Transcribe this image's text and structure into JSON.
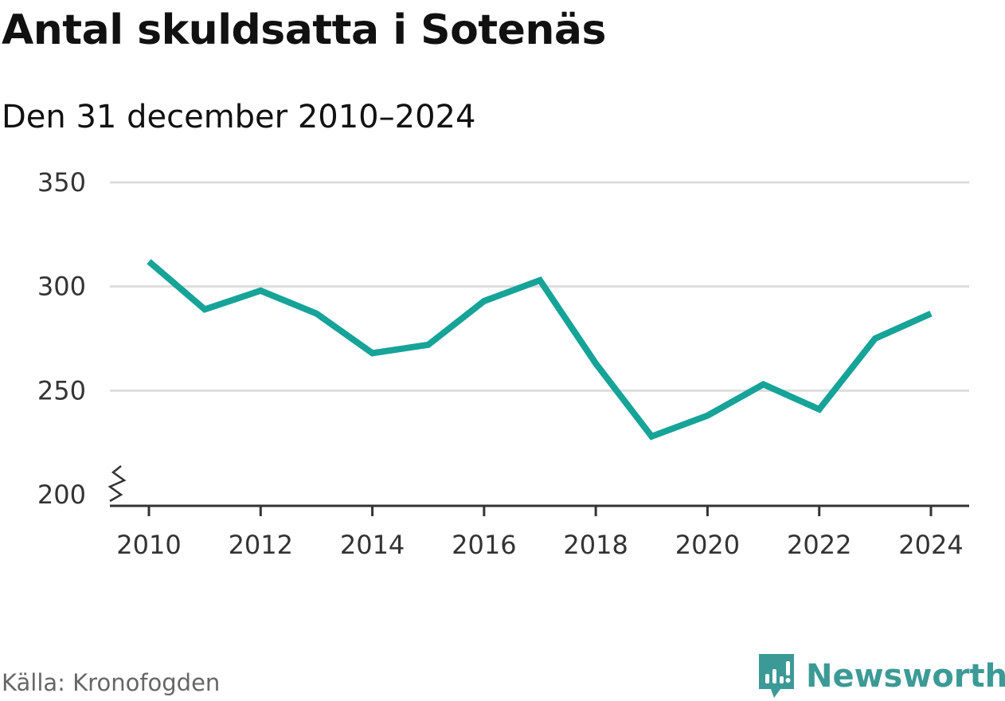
{
  "header": {
    "title": "Antal skuldsatta i Sotenäs",
    "subtitle": "Den 31 december 2010–2024"
  },
  "footer": {
    "source": "Källa: Kronofogden",
    "brand": "Newsworthy"
  },
  "colors": {
    "line": "#16a398",
    "grid": "#dddddd",
    "axis": "#333333",
    "brand": "#3c9a96"
  },
  "chart_data": {
    "type": "line",
    "title": "Antal skuldsatta i Sotenäs",
    "subtitle": "Den 31 december 2010–2024",
    "xlabel": "",
    "ylabel": "",
    "x": [
      2010,
      2011,
      2012,
      2013,
      2014,
      2015,
      2016,
      2017,
      2018,
      2019,
      2020,
      2021,
      2022,
      2023,
      2024
    ],
    "series": [
      {
        "name": "Antal skuldsatta",
        "values": [
          312,
          289,
          298,
          287,
          268,
          272,
          293,
          303,
          263,
          228,
          238,
          253,
          241,
          275,
          287
        ]
      }
    ],
    "xticks": [
      "2010",
      "2012",
      "2014",
      "2016",
      "2018",
      "2020",
      "2022",
      "2024"
    ],
    "yticks": [
      "200",
      "250",
      "300",
      "350"
    ],
    "ylim": [
      200,
      350
    ],
    "xlim": [
      2010,
      2024
    ],
    "grid": true,
    "axis_break": true
  }
}
